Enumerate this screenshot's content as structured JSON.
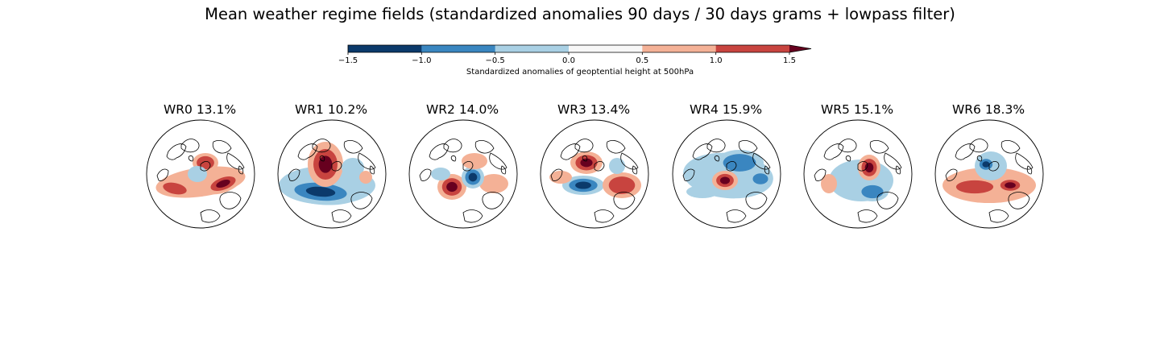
{
  "title": "Mean weather regime fields (standardized anomalies 90 days / 30 days grams + lowpass filter)",
  "colorbar": {
    "label": "Standardized anomalies of geoptential height at 500hPa",
    "ticks": [
      "−1.5",
      "−1.0",
      "−0.5",
      "0.0",
      "0.5",
      "1.0",
      "1.5"
    ],
    "levels": [
      -1.5,
      -1.0,
      -0.5,
      0.0,
      0.5,
      1.0,
      1.5
    ],
    "colors": [
      "#0b3a6b",
      "#3a86c0",
      "#a9d0e4",
      "#f7f7f7",
      "#f4b196",
      "#c8443f"
    ],
    "extend_color": "#67001f"
  },
  "chart_data": {
    "type": "heatmap",
    "title": "Mean weather regime fields (standardized anomalies 90 days / 30 days grams + lowpass filter)",
    "colorbar_label": "Standardized anomalies of geoptential height at 500hPa",
    "colorbar_range": [
      -1.5,
      1.5
    ],
    "colorbar_extend": "max",
    "projection": "orthographic (north polar view)",
    "panels": [
      {
        "label": "WR0 13.1%",
        "regime": "WR0",
        "frequency_pct": 13.1
      },
      {
        "label": "WR1 10.2%",
        "regime": "WR1",
        "frequency_pct": 10.2
      },
      {
        "label": "WR2 14.0%",
        "regime": "WR2",
        "frequency_pct": 14.0
      },
      {
        "label": "WR3 13.4%",
        "regime": "WR3",
        "frequency_pct": 13.4
      },
      {
        "label": "WR4 15.9%",
        "regime": "WR4",
        "frequency_pct": 15.9
      },
      {
        "label": "WR5 15.1%",
        "regime": "WR5",
        "frequency_pct": 15.1
      },
      {
        "label": "WR6 18.3%",
        "regime": "WR6",
        "frequency_pct": 18.3
      }
    ]
  }
}
